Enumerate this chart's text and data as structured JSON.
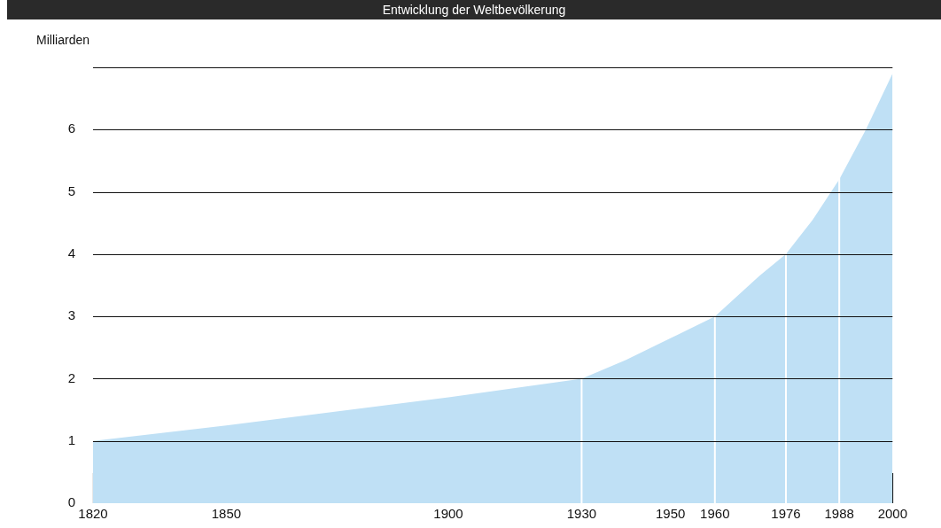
{
  "chart_data": {
    "type": "area",
    "title": "Entwicklung der Weltbevölkerung",
    "ylabel": "Milliarden",
    "x": [
      1820,
      1850,
      1900,
      1930,
      1940,
      1950,
      1960,
      1970,
      1976,
      1982,
      1988,
      1994,
      2000
    ],
    "series": [
      {
        "color": "#bfe0f5",
        "values": [
          1.0,
          1.25,
          1.7,
          2.0,
          2.3,
          2.65,
          3.0,
          3.65,
          4.0,
          4.55,
          5.2,
          6.0,
          6.9
        ]
      }
    ],
    "xlim": [
      1820,
      2000
    ],
    "xticks": [
      1820,
      1850,
      1900,
      1930,
      1950,
      1960,
      1976,
      1988,
      2000
    ],
    "ylim": [
      0,
      7
    ],
    "yticks": [
      0,
      1,
      2,
      3,
      4,
      5,
      6,
      {
        "value": 7,
        "label": null
      }
    ],
    "grid": "y",
    "legend": false,
    "marker": "none",
    "ref_lines": [
      {
        "axis": "x",
        "value": 1930,
        "color": "#ffffff"
      },
      {
        "axis": "x",
        "value": 1960,
        "color": "#ffffff"
      },
      {
        "axis": "x",
        "value": 1976,
        "color": "#ffffff"
      },
      {
        "axis": "x",
        "value": 1988,
        "color": "#ffffff"
      }
    ]
  }
}
